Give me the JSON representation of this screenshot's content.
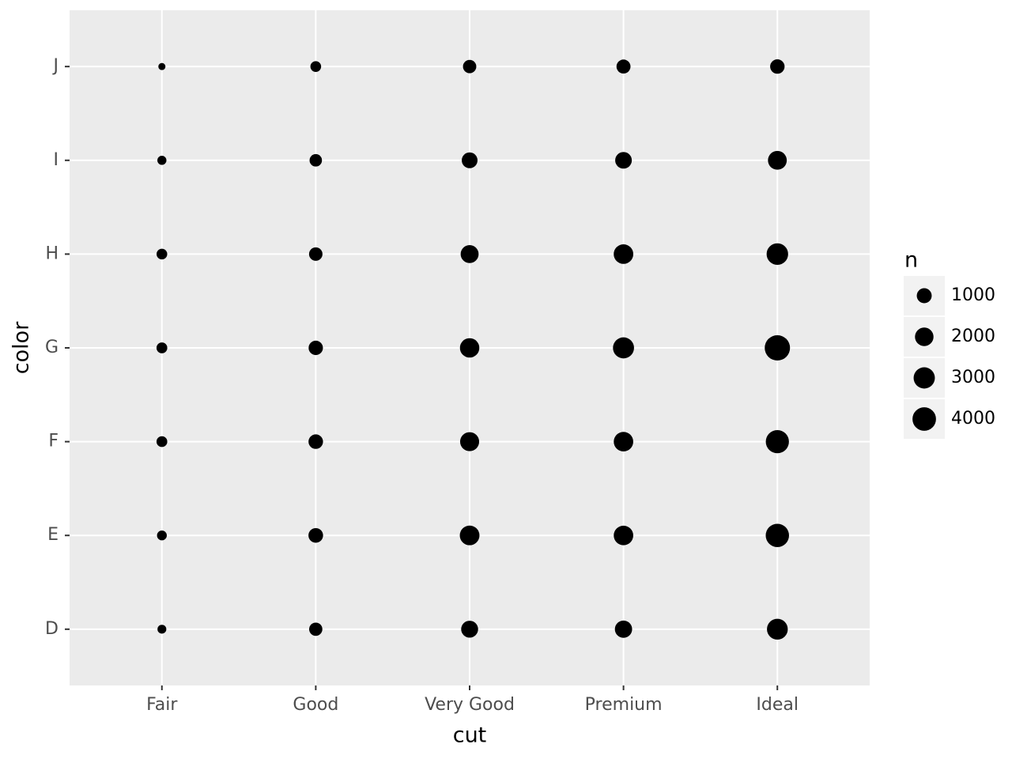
{
  "chart_data": {
    "type": "scatter",
    "xlabel": "cut",
    "ylabel": "color",
    "categories": [
      "Fair",
      "Good",
      "Very Good",
      "Premium",
      "Ideal"
    ],
    "y_categories": [
      "D",
      "E",
      "F",
      "G",
      "H",
      "I",
      "J"
    ],
    "values": [
      [
        163,
        662,
        1513,
        1603,
        2834
      ],
      [
        224,
        933,
        2400,
        2337,
        3903
      ],
      [
        312,
        909,
        2164,
        2331,
        3826
      ],
      [
        314,
        871,
        2299,
        2924,
        4884
      ],
      [
        303,
        702,
        1824,
        2360,
        3115
      ],
      [
        175,
        522,
        1204,
        1428,
        2093
      ],
      [
        119,
        307,
        678,
        808,
        896
      ]
    ],
    "color": "#000000",
    "grid": true,
    "size_legend": {
      "title": "n",
      "values": [
        1000,
        2000,
        3000,
        4000
      ]
    }
  }
}
